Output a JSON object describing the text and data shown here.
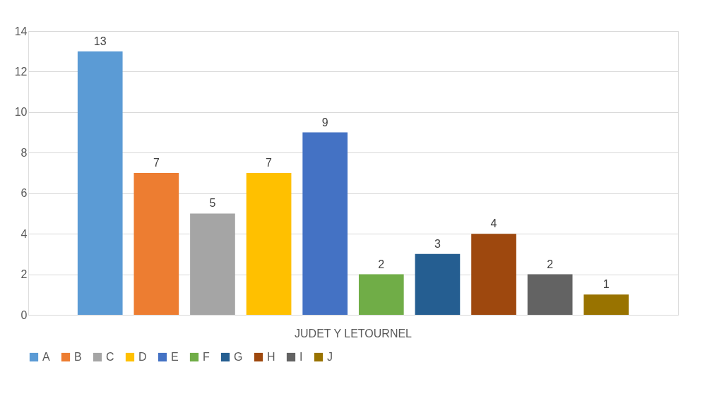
{
  "chart_data": {
    "type": "bar",
    "categories": [
      "JUDET Y LETOURNEL"
    ],
    "series": [
      {
        "name": "A",
        "color": "#5b9bd5",
        "values": [
          13
        ]
      },
      {
        "name": "B",
        "color": "#ed7d31",
        "values": [
          7
        ]
      },
      {
        "name": "C",
        "color": "#a5a5a5",
        "values": [
          5
        ]
      },
      {
        "name": "D",
        "color": "#ffc000",
        "values": [
          7
        ]
      },
      {
        "name": "E",
        "color": "#4472c4",
        "values": [
          9
        ]
      },
      {
        "name": "F",
        "color": "#70ad47",
        "values": [
          2
        ]
      },
      {
        "name": "G",
        "color": "#255e91",
        "values": [
          3
        ]
      },
      {
        "name": "H",
        "color": "#9e480e",
        "values": [
          4
        ]
      },
      {
        "name": "I",
        "color": "#636363",
        "values": [
          2
        ]
      },
      {
        "name": "J",
        "color": "#997300",
        "values": [
          1
        ]
      }
    ],
    "ylim": [
      0,
      14
    ],
    "yticks": [
      0,
      2,
      4,
      6,
      8,
      10,
      12,
      14
    ],
    "grid": "y",
    "legend": "bottom",
    "data_labels": true
  }
}
